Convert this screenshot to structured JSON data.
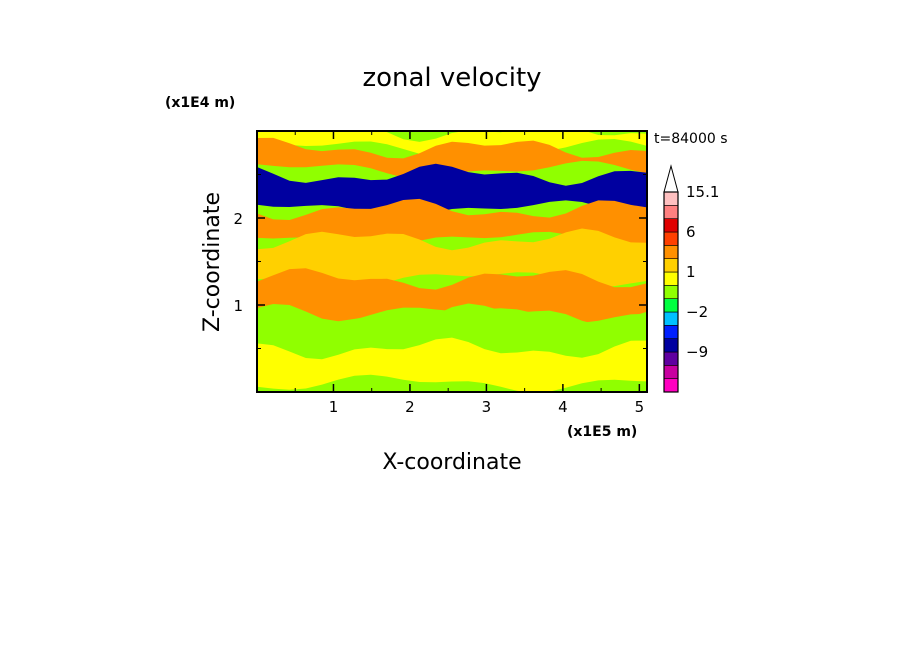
{
  "chart_data": {
    "type": "heatmap",
    "title": "zonal velocity",
    "xlabel": "X-coordinate",
    "ylabel": "Z-coordinate",
    "x_unit": "(x1E5 m)",
    "y_unit": "(x1E4 m)",
    "time_label": "t=84000 s",
    "xlim": [
      0,
      5.1
    ],
    "ylim": [
      0,
      3.0
    ],
    "x_ticks": [
      1,
      2,
      3,
      4,
      5
    ],
    "y_ticks": [
      1,
      2
    ],
    "x_tick_labels": [
      "1",
      "2",
      "3",
      "4",
      "5"
    ],
    "y_tick_labels": [
      "1",
      "2"
    ],
    "colorbar": {
      "levels": [
        -15,
        -12,
        -9,
        -6,
        -3,
        -2,
        -1,
        0,
        1,
        2,
        3,
        6,
        9,
        12,
        15.1
      ],
      "colors": [
        "#ff00c0",
        "#c800a0",
        "#6000a0",
        "#0000a0",
        "#0020ff",
        "#00c0ff",
        "#00ff40",
        "#90ff00",
        "#ffff00",
        "#ffd000",
        "#ff9000",
        "#ff4000",
        "#e00000",
        "#ff8080",
        "#ffc0c0"
      ],
      "labels": [
        {
          "value": 15.1,
          "text": "15.1"
        },
        {
          "value": 6,
          "text": "6"
        },
        {
          "value": 1,
          "text": "1"
        },
        {
          "value": -2,
          "text": "−2"
        },
        {
          "value": -9,
          "text": "−9"
        }
      ]
    },
    "field_bands": [
      {
        "z": [
          2.8,
          3.0
        ],
        "value": 1
      },
      {
        "z": [
          2.55,
          2.8
        ],
        "value": 4
      },
      {
        "z": [
          2.1,
          2.5
        ],
        "value": -5
      },
      {
        "z": [
          1.75,
          2.1
        ],
        "value": 5
      },
      {
        "z": [
          1.3,
          1.75
        ],
        "value": 2
      },
      {
        "z": [
          0.9,
          1.3
        ],
        "value": 3
      },
      {
        "z": [
          0.5,
          0.9
        ],
        "value": 0
      },
      {
        "z": [
          0.1,
          0.5
        ],
        "value": 1
      }
    ]
  }
}
